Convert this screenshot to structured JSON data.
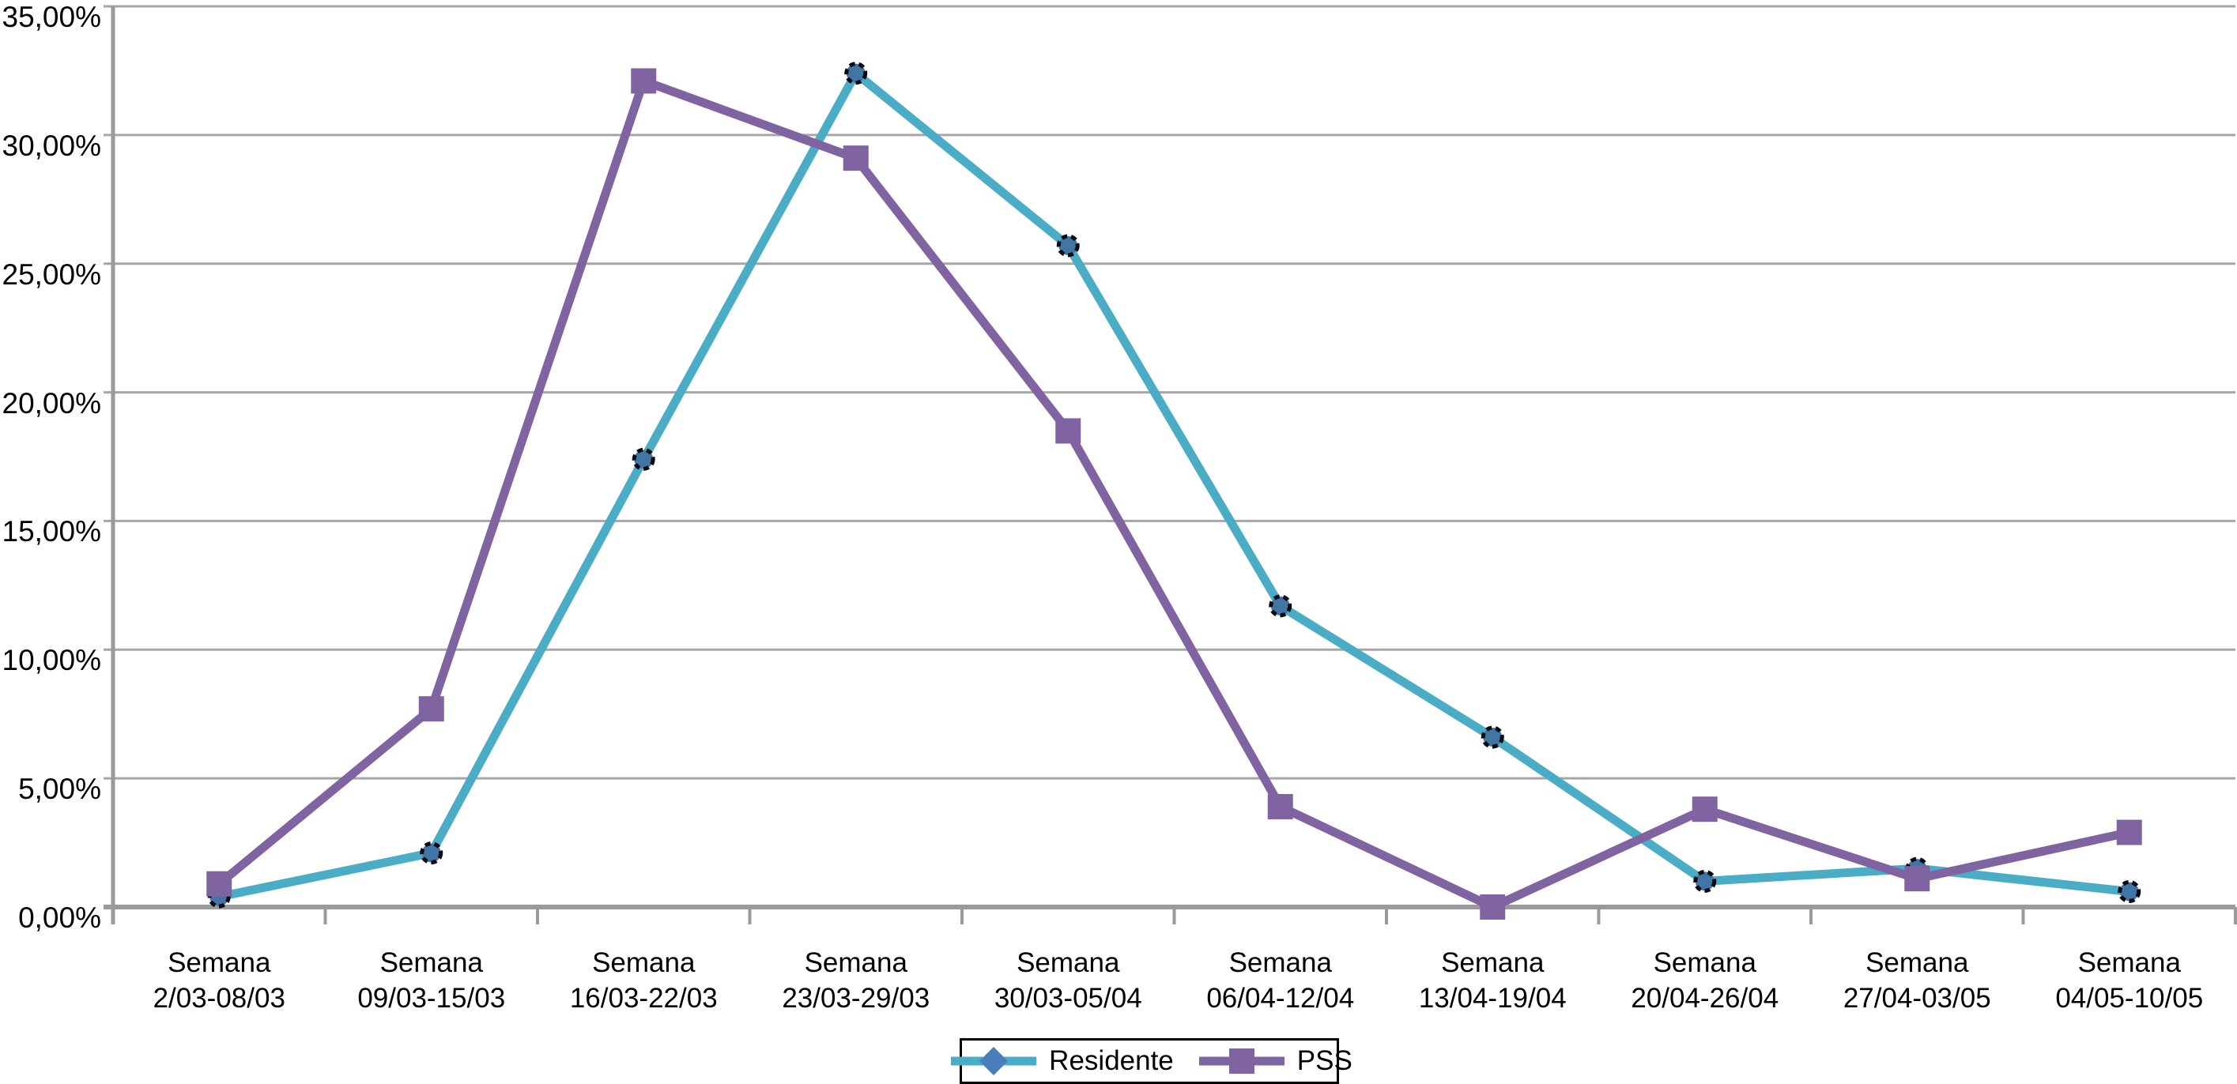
{
  "chart_data": {
    "type": "line",
    "title": "",
    "xlabel": "",
    "ylabel": "",
    "categories": [
      "Semana 2/03-08/03",
      "Semana 09/03-15/03",
      "Semana 16/03-22/03",
      "Semana 23/03-29/03",
      "Semana 30/03-05/04",
      "Semana 06/04-12/04",
      "Semana 13/04-19/04",
      "Semana 20/04-26/04",
      "Semana 27/04-03/05",
      "Semana 04/05-10/05"
    ],
    "series": [
      {
        "name": "Residente",
        "values": [
          0.4,
          2.1,
          17.4,
          32.4,
          25.7,
          11.7,
          6.6,
          1.0,
          1.5,
          0.6
        ],
        "color": "#4bacc6",
        "marker": "circle",
        "marker_fill": "#4176a4",
        "marker_border": "#0a0a14",
        "legend_marker": "diamond",
        "legend_marker_fill": "#4a7ebb"
      },
      {
        "name": "PSS",
        "values": [
          0.9,
          7.7,
          32.1,
          29.1,
          18.5,
          3.9,
          0.0,
          3.8,
          1.1,
          2.9
        ],
        "color": "#8064a2",
        "marker": "square",
        "marker_fill": "#8064a2",
        "marker_border": "none",
        "legend_marker": "square",
        "legend_marker_fill": "#8064a2"
      }
    ],
    "y_axis": {
      "min": 0,
      "max": 35,
      "step": 5,
      "tick_labels": [
        "0,00%",
        "5,00%",
        "10,00%",
        "15,00%",
        "20,00%",
        "25,00%",
        "30,00%",
        "35,00%"
      ]
    },
    "grid": true,
    "legend_position": "bottom-center",
    "colors": {
      "gridline": "#a6a6a6",
      "axis": "#9a9a9a",
      "background": "#ffffff",
      "legend_border": "#000000",
      "text": "#000000"
    }
  }
}
